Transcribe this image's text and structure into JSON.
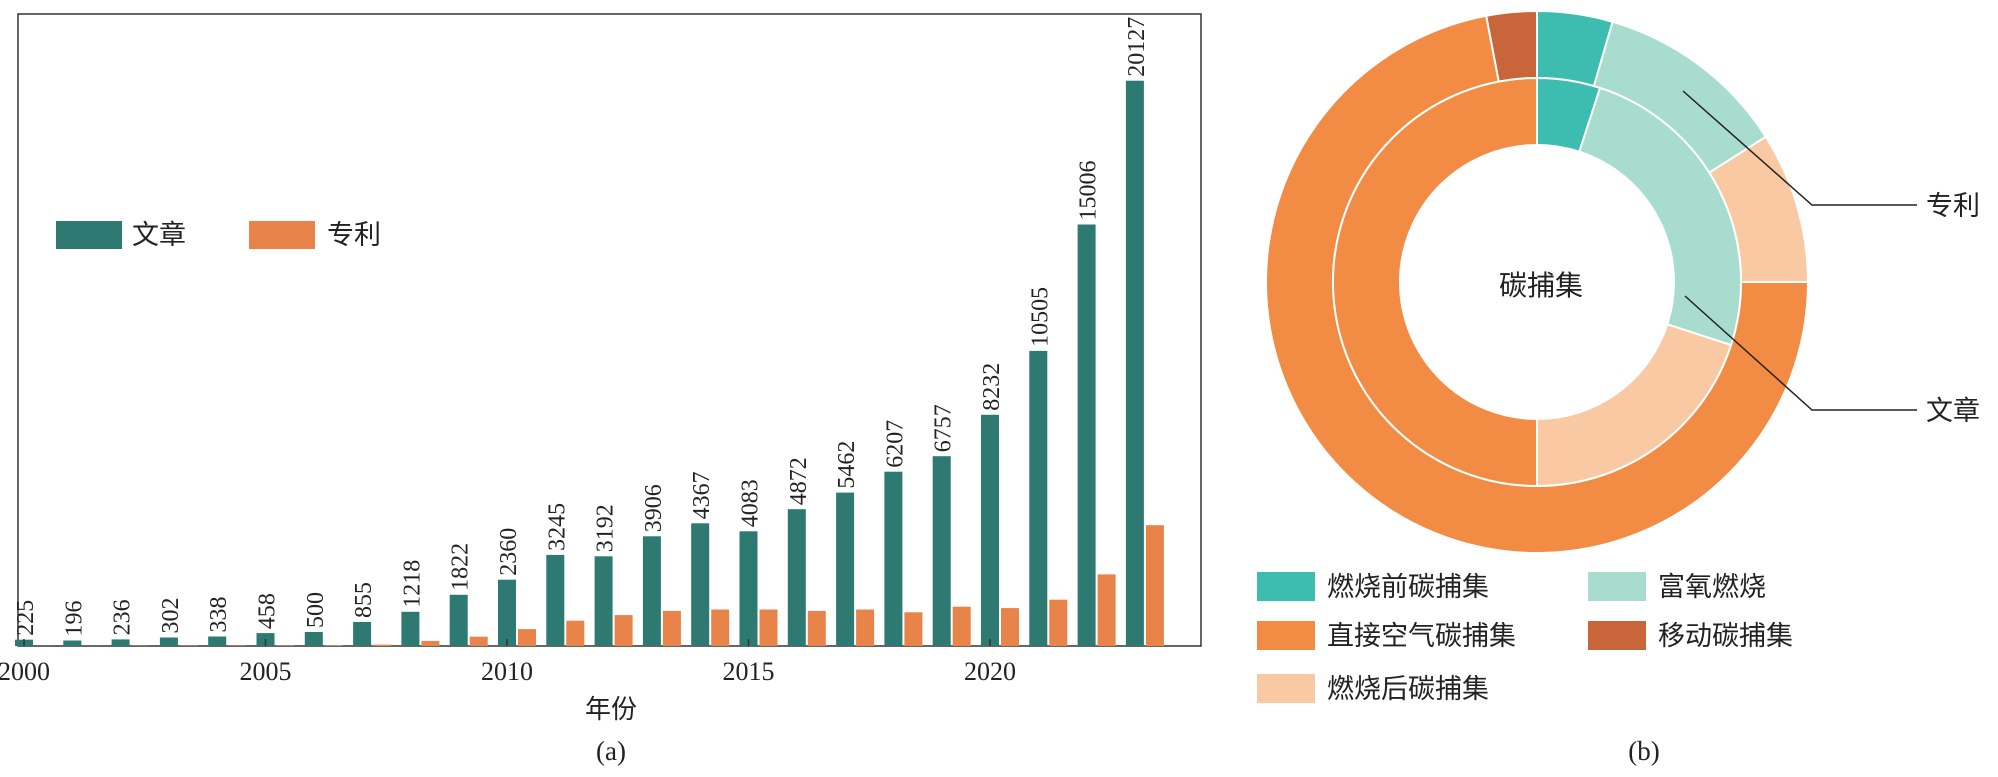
{
  "chart_data": [
    {
      "type": "bar",
      "panel_label": "(a)",
      "xlabel": "年份",
      "x_ticks": [
        "2000",
        "2005",
        "2010",
        "2015",
        "2020"
      ],
      "categories": [
        "2000",
        "2001",
        "2002",
        "2003",
        "2004",
        "2005",
        "2006",
        "2007",
        "2008",
        "2009",
        "2010",
        "2011",
        "2012",
        "2013",
        "2014",
        "2015",
        "2016",
        "2017",
        "2018",
        "2019",
        "2020",
        "2021",
        "2022",
        "2023"
      ],
      "ylim": [
        0,
        22500
      ],
      "legend_position": "upper-left",
      "series": [
        {
          "name": "文章",
          "color": "#2e7a72",
          "values": [
            225,
            196,
            236,
            302,
            338,
            458,
            500,
            855,
            1218,
            1822,
            2360,
            3245,
            3192,
            3906,
            4367,
            4083,
            4872,
            5462,
            6207,
            6757,
            8232,
            10505,
            15006,
            20127
          ],
          "labels": [
            "225",
            "196",
            "236",
            "302",
            "338",
            "458",
            "500",
            "855",
            "1218",
            "1822",
            "2360",
            "3245",
            "3192",
            "3906",
            "4367",
            "4083",
            "4872",
            "5462",
            "6207",
            "6757",
            "8232",
            "10505",
            "15006",
            "20127"
          ]
        },
        {
          "name": "专利",
          "color": "#e8834a",
          "values": [
            5,
            5,
            8,
            10,
            12,
            15,
            18,
            45,
            180,
            330,
            600,
            900,
            1100,
            1250,
            1300,
            1300,
            1250,
            1300,
            1200,
            1400,
            1350,
            1650,
            2550,
            4300
          ]
        }
      ]
    },
    {
      "type": "pie",
      "subtype": "nested-donut",
      "panel_label": "(b)",
      "center_label": "碳捕集",
      "rings": [
        {
          "name": "专利",
          "position": "outer",
          "slices": [
            {
              "label": "燃烧前碳捕集",
              "value": 4.5
            },
            {
              "label": "富氧燃烧",
              "value": 11.5
            },
            {
              "label": "燃烧后碳捕集",
              "value": 9
            },
            {
              "label": "直接空气碳捕集",
              "value": 72
            },
            {
              "label": "移动碳捕集",
              "value": 3
            }
          ]
        },
        {
          "name": "文章",
          "position": "inner",
          "slices": [
            {
              "label": "燃烧前碳捕集",
              "value": 5
            },
            {
              "label": "富氧燃烧",
              "value": 25
            },
            {
              "label": "燃烧后碳捕集",
              "value": 20
            },
            {
              "label": "直接空气碳捕集",
              "value": 50
            },
            {
              "label": "移动碳捕集",
              "value": 0
            }
          ]
        }
      ],
      "legend": [
        {
          "label": "燃烧前碳捕集",
          "color": "#3dbcb0"
        },
        {
          "label": "富氧燃烧",
          "color": "#a8dccf"
        },
        {
          "label": "直接空气碳捕集",
          "color": "#f28c45"
        },
        {
          "label": "移动碳捕集",
          "color": "#c9653a"
        },
        {
          "label": "燃烧后碳捕集",
          "color": "#f8c9a2"
        }
      ]
    }
  ]
}
